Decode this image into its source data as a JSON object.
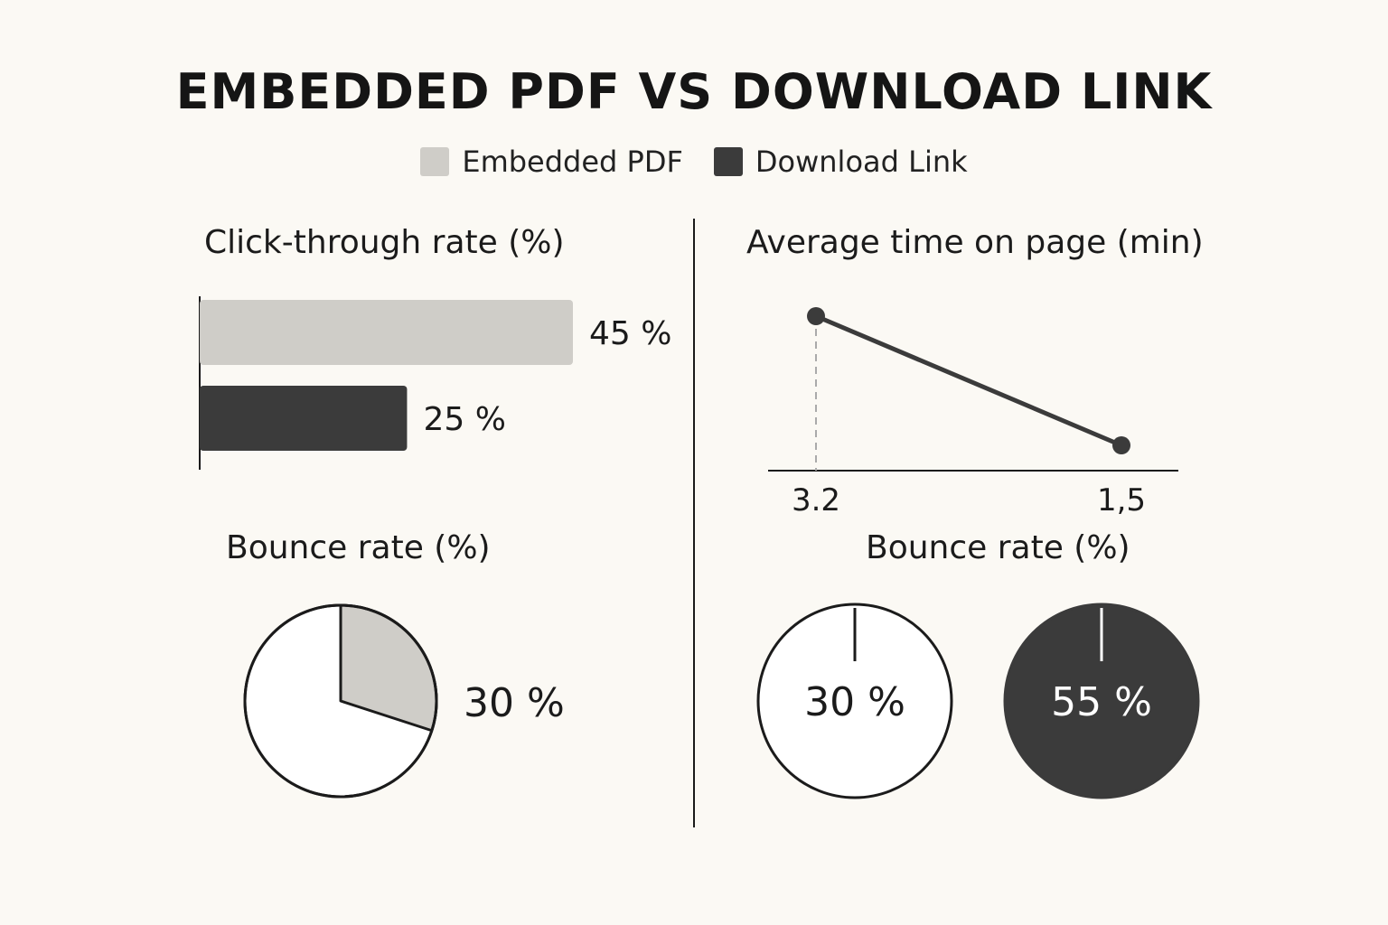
{
  "title": "EMBEDDED PDF VS DOWNLOAD LINK",
  "legend": [
    {
      "label": "Embedded PDF",
      "color": "#cfcdc8"
    },
    {
      "label": "Download Link",
      "color": "#3b3b3b"
    }
  ],
  "chart_data": [
    {
      "type": "bar",
      "title": "Click-through rate (%)",
      "categories": [
        "Embedded PDF",
        "Download Link"
      ],
      "values": [
        45,
        25
      ],
      "value_labels": [
        "45 %",
        "25 %"
      ],
      "colors": [
        "#cfcdc8",
        "#3b3b3b"
      ],
      "orientation": "horizontal",
      "xlim": [
        0,
        45
      ]
    },
    {
      "type": "line",
      "title": "Average time on page (min)",
      "x": [
        "Embedded PDF",
        "Download Link"
      ],
      "values": [
        3.2,
        1.5
      ],
      "tick_labels": [
        "3.2",
        "1,5"
      ],
      "ylim": [
        1.5,
        3.2
      ]
    },
    {
      "type": "pie",
      "title": "Bounce rate (%)",
      "slices": [
        {
          "label": "Embedded PDF",
          "value": 30
        }
      ],
      "value_label": "30 %",
      "color": "#cfcdc8"
    },
    {
      "type": "pie",
      "title": "Bounce rate (%)",
      "slices": [
        {
          "label": "Embedded PDF",
          "value": 30,
          "value_label": "30 %",
          "color": "#ffffff"
        },
        {
          "label": "Download Link",
          "value": 55,
          "value_label": "55 %",
          "color": "#3b3b3b"
        }
      ]
    }
  ]
}
